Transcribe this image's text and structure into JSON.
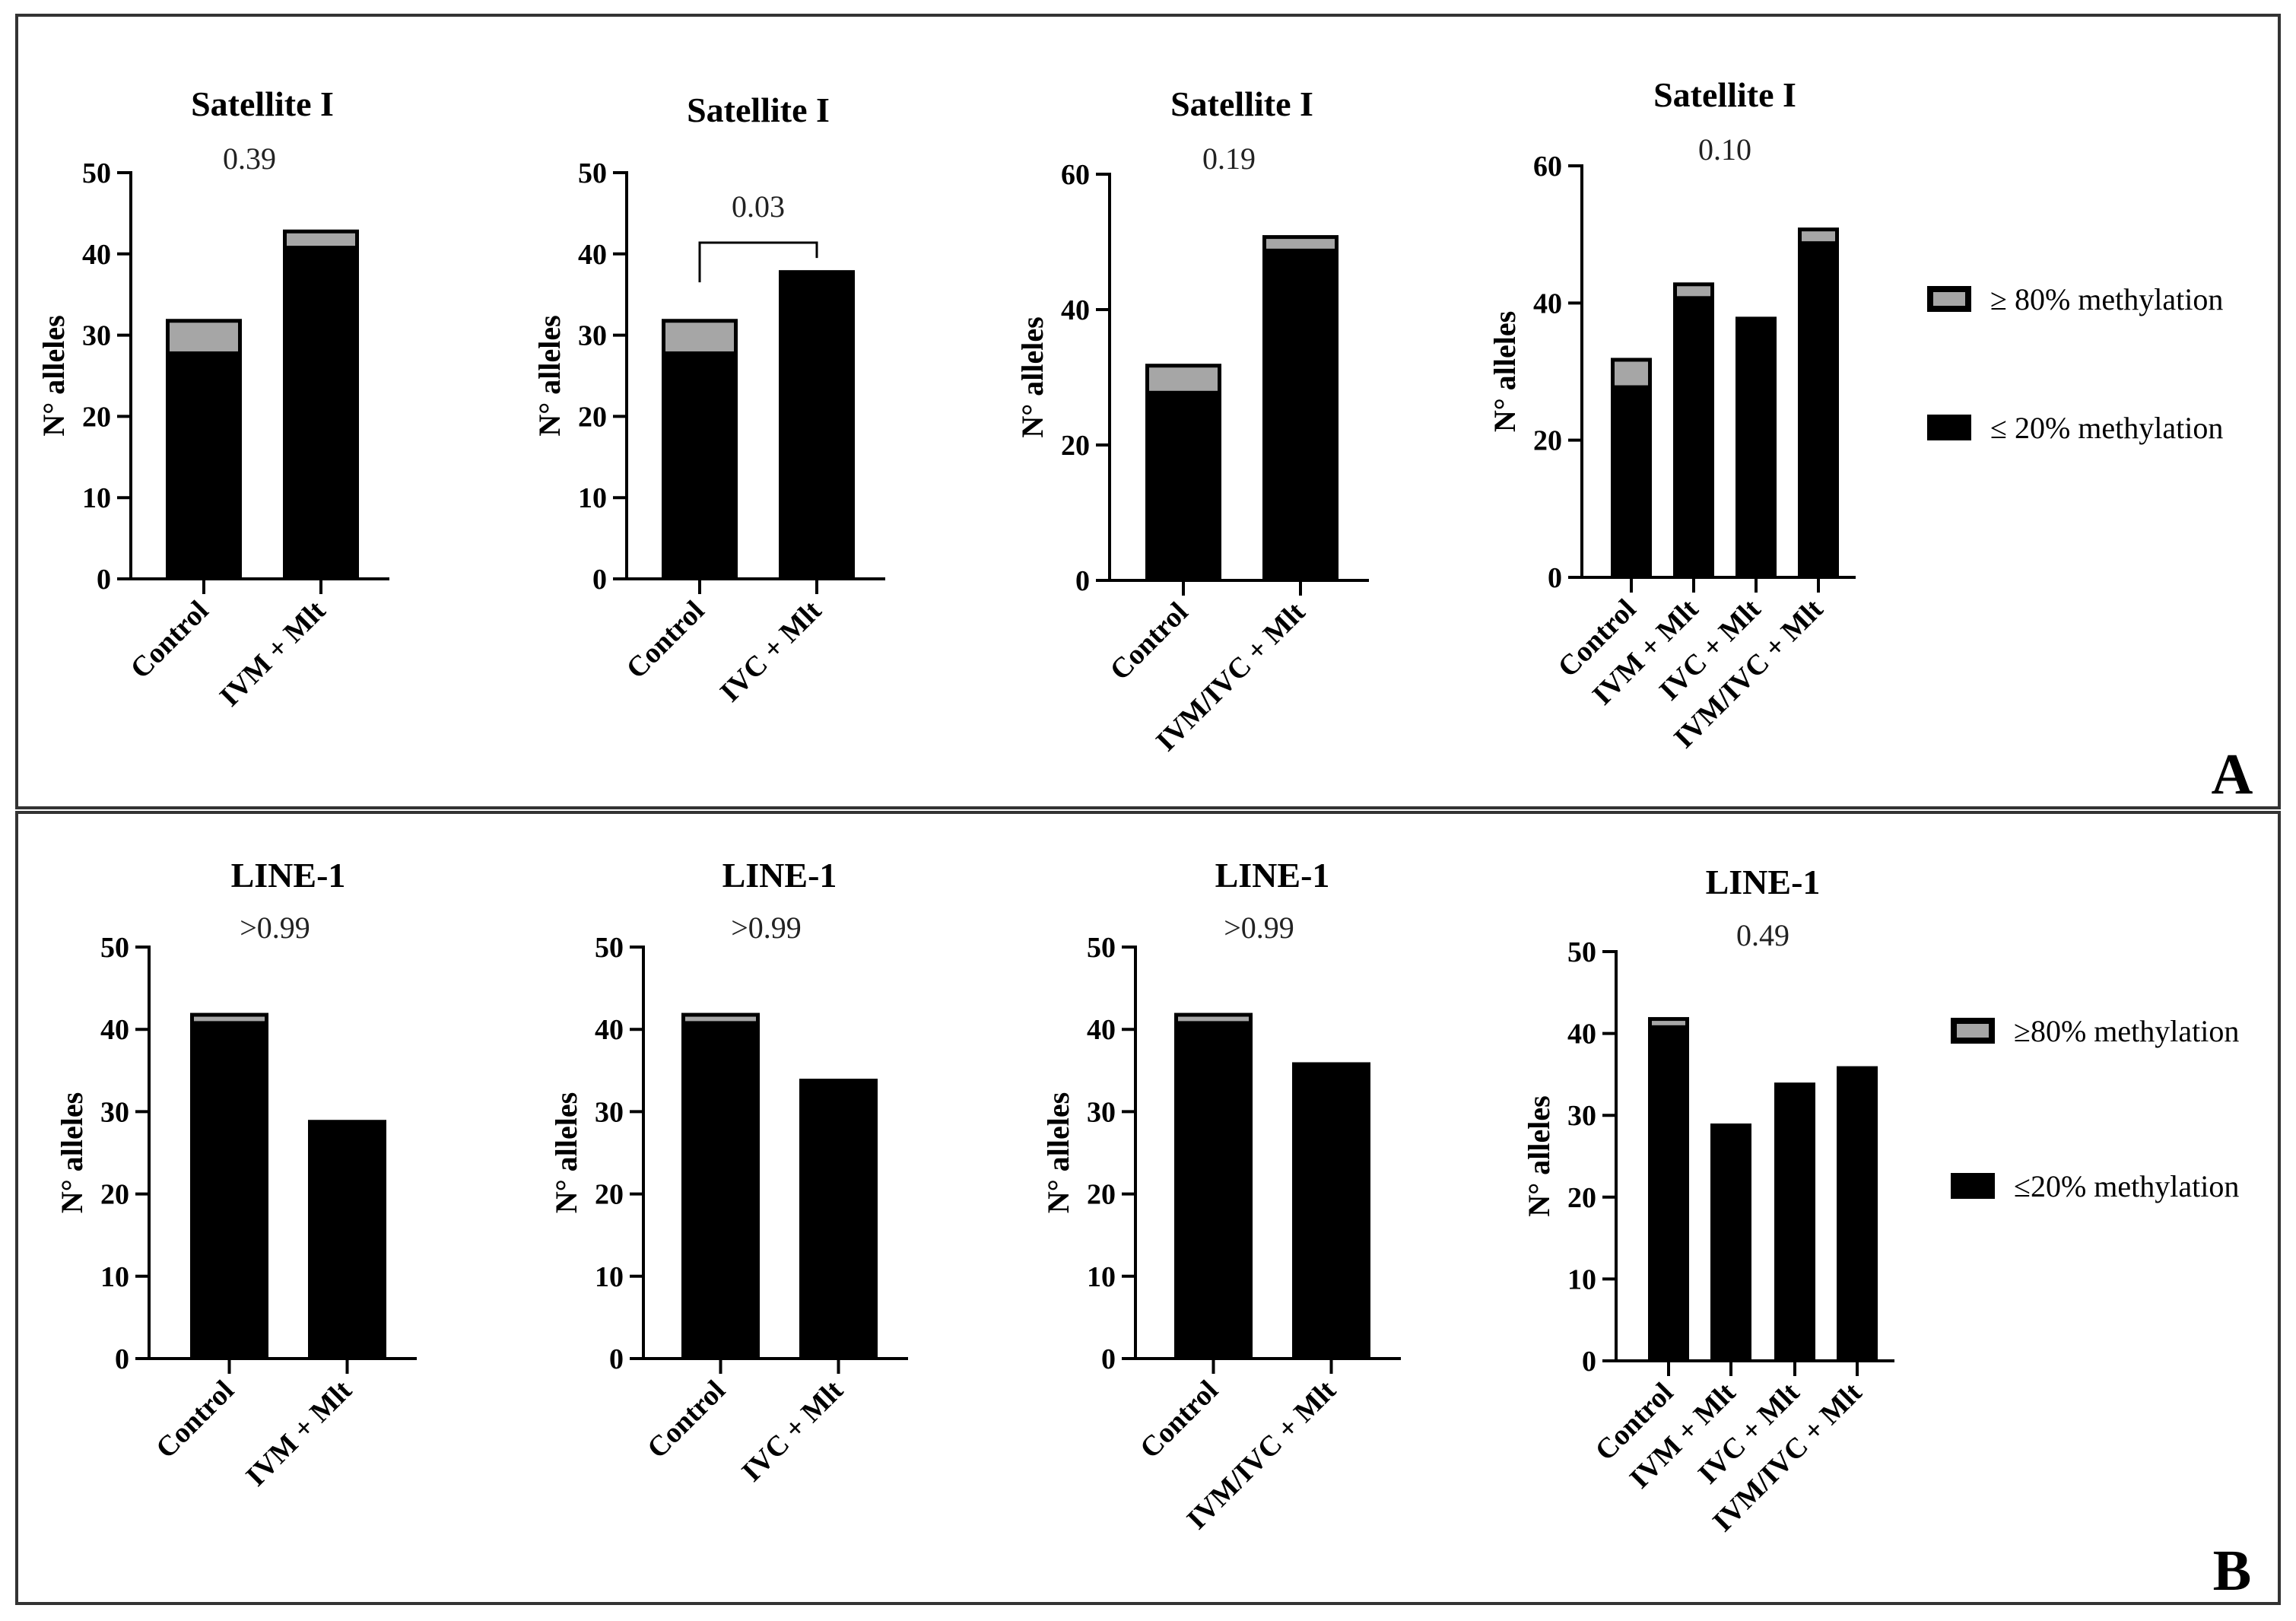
{
  "colors": {
    "low_methylation": "#000000",
    "high_methylation": "#a6a6a6",
    "frame": "#333333"
  },
  "panels": [
    {
      "letter": "A",
      "legend": [
        {
          "label": "≥ 80% methylation",
          "color": "#a6a6a6"
        },
        {
          "label": "≤ 20% methylation",
          "color": "#000000"
        }
      ]
    },
    {
      "letter": "B",
      "legend": [
        {
          "label": "≥80% methylation",
          "color": "#a6a6a6"
        },
        {
          "label": "≤20% methylation",
          "color": "#000000"
        }
      ]
    }
  ],
  "chart_data": [
    {
      "type": "bar",
      "stacked": true,
      "title": "Satellite I",
      "p_value": "0.39",
      "bracket": false,
      "ylabel": "N° alleles",
      "ylim": [
        0,
        50
      ],
      "yticks": [
        0,
        10,
        20,
        30,
        40,
        50
      ],
      "categories": [
        "Control",
        "IVM + Mlt"
      ],
      "series": [
        {
          "name": "≤ 20% methylation",
          "values": [
            28,
            41
          ]
        },
        {
          "name": "≥ 80% methylation",
          "values": [
            4,
            2
          ]
        }
      ]
    },
    {
      "type": "bar",
      "stacked": true,
      "title": "Satellite I",
      "p_value": "0.03",
      "bracket": true,
      "ylabel": "N° alleles",
      "ylim": [
        0,
        50
      ],
      "yticks": [
        0,
        10,
        20,
        30,
        40,
        50
      ],
      "categories": [
        "Control",
        "IVC + Mlt"
      ],
      "series": [
        {
          "name": "≤ 20% methylation",
          "values": [
            28,
            38
          ]
        },
        {
          "name": "≥ 80% methylation",
          "values": [
            4,
            0
          ]
        }
      ]
    },
    {
      "type": "bar",
      "stacked": true,
      "title": "Satellite I",
      "p_value": "0.19",
      "bracket": false,
      "ylabel": "N° alleles",
      "ylim": [
        0,
        60
      ],
      "yticks": [
        0,
        20,
        40,
        60
      ],
      "categories": [
        "Control",
        "IVM/IVC + Mlt"
      ],
      "series": [
        {
          "name": "≤ 20% methylation",
          "values": [
            28,
            49
          ]
        },
        {
          "name": "≥ 80% methylation",
          "values": [
            4,
            2
          ]
        }
      ]
    },
    {
      "type": "bar",
      "stacked": true,
      "title": "Satellite I",
      "p_value": "0.10",
      "bracket": false,
      "ylabel": "N° alleles",
      "ylim": [
        0,
        60
      ],
      "yticks": [
        0,
        20,
        40,
        60
      ],
      "categories": [
        "Control",
        "IVM + Mlt",
        "IVC + Mlt",
        "IVM/IVC + Mlt"
      ],
      "series": [
        {
          "name": "≤ 20% methylation",
          "values": [
            28,
            41,
            38,
            49
          ]
        },
        {
          "name": "≥ 80% methylation",
          "values": [
            4,
            2,
            0,
            2
          ]
        }
      ]
    },
    {
      "type": "bar",
      "stacked": true,
      "title": "LINE-1",
      "p_value": ">0.99",
      "bracket": false,
      "ylabel": "N° alleles",
      "ylim": [
        0,
        50
      ],
      "yticks": [
        0,
        10,
        20,
        30,
        40,
        50
      ],
      "categories": [
        "Control",
        "IVM + Mlt"
      ],
      "series": [
        {
          "name": "≤20% methylation",
          "values": [
            41,
            29
          ]
        },
        {
          "name": "≥80% methylation",
          "values": [
            1,
            0
          ]
        }
      ]
    },
    {
      "type": "bar",
      "stacked": true,
      "title": "LINE-1",
      "p_value": ">0.99",
      "bracket": false,
      "ylabel": "N° alleles",
      "ylim": [
        0,
        50
      ],
      "yticks": [
        0,
        10,
        20,
        30,
        40,
        50
      ],
      "categories": [
        "Control",
        "IVC + Mlt"
      ],
      "series": [
        {
          "name": "≤20% methylation",
          "values": [
            41,
            34
          ]
        },
        {
          "name": "≥80% methylation",
          "values": [
            1,
            0
          ]
        }
      ]
    },
    {
      "type": "bar",
      "stacked": true,
      "title": "LINE-1",
      "p_value": ">0.99",
      "bracket": false,
      "ylabel": "N° alleles",
      "ylim": [
        0,
        50
      ],
      "yticks": [
        0,
        10,
        20,
        30,
        40,
        50
      ],
      "categories": [
        "Control",
        "IVM/IVC + Mlt"
      ],
      "series": [
        {
          "name": "≤20% methylation",
          "values": [
            41,
            36
          ]
        },
        {
          "name": "≥80% methylation",
          "values": [
            1,
            0
          ]
        }
      ]
    },
    {
      "type": "bar",
      "stacked": true,
      "title": "LINE-1",
      "p_value": "0.49",
      "bracket": false,
      "ylabel": "N° alleles",
      "ylim": [
        0,
        50
      ],
      "yticks": [
        0,
        10,
        20,
        30,
        40,
        50
      ],
      "categories": [
        "Control",
        "IVM + Mlt",
        "IVC + Mlt",
        "IVM/IVC + Mlt"
      ],
      "series": [
        {
          "name": "≤20% methylation",
          "values": [
            41,
            29,
            34,
            36
          ]
        },
        {
          "name": "≥80% methylation",
          "values": [
            1,
            0,
            0,
            0
          ]
        }
      ]
    }
  ]
}
